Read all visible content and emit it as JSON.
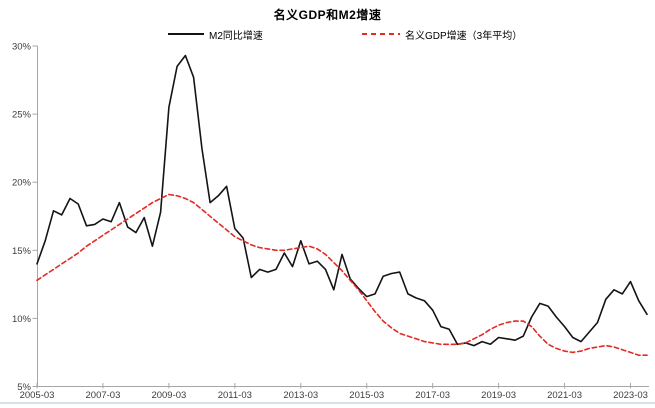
{
  "title": "名义GDP和M2增速",
  "legend": {
    "items": [
      {
        "label": "M2同比增速",
        "line_style": "solid",
        "color": "#141414"
      },
      {
        "label": "名义GDP增速（3年平均）",
        "line_style": "dashed",
        "color": "#e32a25"
      }
    ]
  },
  "colors": {
    "m2_line": "#141414",
    "gdp_line": "#e32a25",
    "axis": "#a6a6a6",
    "tick_text": "#3d3d3d",
    "bottom_edge": "#d7e0ea"
  },
  "chart_data": {
    "type": "line",
    "title": "名义GDP和M2增速",
    "xlabel": "",
    "ylabel": "",
    "ylim": [
      5,
      30
    ],
    "grid": false,
    "legend_position": "top",
    "y_tick_labels": [
      "30%",
      "25%",
      "20%",
      "15%",
      "10%",
      "5%"
    ],
    "y_tick_values": [
      30,
      25,
      20,
      15,
      10,
      5
    ],
    "x_tick_labels": [
      "2005-03",
      "2007-03",
      "2009-03",
      "2011-03",
      "2013-03",
      "2015-03",
      "2017-03",
      "2019-03",
      "2021-03",
      "2023-03"
    ],
    "x_tick_indices": [
      0,
      8,
      16,
      24,
      32,
      40,
      48,
      56,
      64,
      72
    ],
    "categories": [
      "2005-03",
      "2005-06",
      "2005-09",
      "2005-12",
      "2006-03",
      "2006-06",
      "2006-09",
      "2006-12",
      "2007-03",
      "2007-06",
      "2007-09",
      "2007-12",
      "2008-03",
      "2008-06",
      "2008-09",
      "2008-12",
      "2009-03",
      "2009-06",
      "2009-09",
      "2009-12",
      "2010-03",
      "2010-06",
      "2010-09",
      "2010-12",
      "2011-03",
      "2011-06",
      "2011-09",
      "2011-12",
      "2012-03",
      "2012-06",
      "2012-09",
      "2012-12",
      "2013-03",
      "2013-06",
      "2013-09",
      "2013-12",
      "2014-03",
      "2014-06",
      "2014-09",
      "2014-12",
      "2015-03",
      "2015-06",
      "2015-09",
      "2015-12",
      "2016-03",
      "2016-06",
      "2016-09",
      "2016-12",
      "2017-03",
      "2017-06",
      "2017-09",
      "2017-12",
      "2018-03",
      "2018-06",
      "2018-09",
      "2018-12",
      "2019-03",
      "2019-06",
      "2019-09",
      "2019-12",
      "2020-03",
      "2020-06",
      "2020-09",
      "2020-12",
      "2021-03",
      "2021-06",
      "2021-09",
      "2021-12",
      "2022-03",
      "2022-06",
      "2022-09",
      "2022-12",
      "2023-03",
      "2023-06",
      "2023-09"
    ],
    "series": [
      {
        "name": "M2同比增速",
        "color": "#141414",
        "style": "solid",
        "unit": "%",
        "values": [
          14.0,
          15.7,
          17.9,
          17.6,
          18.8,
          18.4,
          16.8,
          16.9,
          17.3,
          17.1,
          18.5,
          16.7,
          16.3,
          17.4,
          15.3,
          17.8,
          25.5,
          28.5,
          29.3,
          27.7,
          22.5,
          18.5,
          19.0,
          19.7,
          16.6,
          15.9,
          13.0,
          13.6,
          13.4,
          13.6,
          14.8,
          13.8,
          15.7,
          14.0,
          14.2,
          13.6,
          12.1,
          14.7,
          12.9,
          12.2,
          11.6,
          11.8,
          13.1,
          13.3,
          13.4,
          11.8,
          11.5,
          11.3,
          10.6,
          9.4,
          9.2,
          8.1,
          8.2,
          8.0,
          8.3,
          8.1,
          8.6,
          8.5,
          8.4,
          8.7,
          10.1,
          11.1,
          10.9,
          10.1,
          9.4,
          8.6,
          8.3,
          9.0,
          9.7,
          11.4,
          12.1,
          11.8,
          12.7,
          11.3,
          10.3
        ]
      },
      {
        "name": "名义GDP增速（3年平均）",
        "color": "#e32a25",
        "style": "dashed",
        "unit": "%",
        "values": [
          12.8,
          13.2,
          13.6,
          14.0,
          14.4,
          14.8,
          15.3,
          15.7,
          16.1,
          16.5,
          16.9,
          17.3,
          17.7,
          18.1,
          18.5,
          18.8,
          19.1,
          19.0,
          18.8,
          18.5,
          18.0,
          17.5,
          17.0,
          16.5,
          16.0,
          15.7,
          15.4,
          15.2,
          15.1,
          15.0,
          15.0,
          15.1,
          15.2,
          15.3,
          15.1,
          14.7,
          14.1,
          13.5,
          12.8,
          12.1,
          11.3,
          10.5,
          9.8,
          9.3,
          8.9,
          8.7,
          8.5,
          8.3,
          8.2,
          8.1,
          8.1,
          8.1,
          8.2,
          8.5,
          8.8,
          9.2,
          9.5,
          9.7,
          9.8,
          9.8,
          9.4,
          8.7,
          8.1,
          7.8,
          7.6,
          7.5,
          7.6,
          7.8,
          7.9,
          8.0,
          7.9,
          7.7,
          7.5,
          7.3,
          7.3
        ]
      }
    ]
  }
}
